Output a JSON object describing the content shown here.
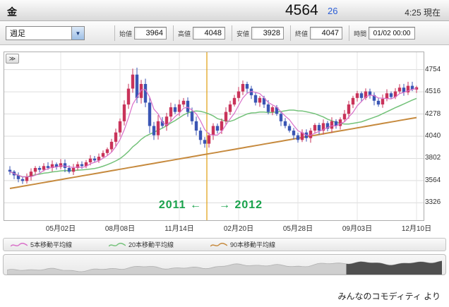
{
  "header": {
    "instrument": "金",
    "price": "4564",
    "change": "26",
    "time_now": "4:25 現在"
  },
  "toolbar": {
    "timeframe": {
      "value": "週足"
    },
    "fields": [
      {
        "label": "始値",
        "value": "3964"
      },
      {
        "label": "高値",
        "value": "4048"
      },
      {
        "label": "安値",
        "value": "3928"
      },
      {
        "label": "終値",
        "value": "4047"
      },
      {
        "label": "時間",
        "value": "01/02 00:00"
      }
    ]
  },
  "icons": {
    "expand_panel": "≫",
    "dropdown_arrow": "▼"
  },
  "chart_data": {
    "type": "candlestick",
    "timeframe": "weekly",
    "y_ticks": [
      3326,
      3564,
      3802,
      4040,
      4278,
      4516,
      4754
    ],
    "y_range": [
      3140,
      4940
    ],
    "x_tick_labels": [
      "05月02日",
      "08月08日",
      "11月14日",
      "02月20日",
      "05月28日",
      "09月03日",
      "12月10日"
    ],
    "x_tick_indices": [
      12,
      26,
      40,
      54,
      68,
      82,
      96
    ],
    "first_open": 3680,
    "closes": [
      3660,
      3620,
      3580,
      3560,
      3610,
      3660,
      3700,
      3680,
      3720,
      3700,
      3740,
      3710,
      3750,
      3700,
      3660,
      3700,
      3740,
      3720,
      3760,
      3800,
      3780,
      3820,
      3860,
      3900,
      3980,
      4080,
      4200,
      4380,
      4550,
      4700,
      4450,
      4600,
      4400,
      4150,
      4050,
      4200,
      4150,
      4250,
      4350,
      4300,
      4380,
      4420,
      4300,
      4200,
      4100,
      4000,
      3960,
      4050,
      4150,
      4100,
      4200,
      4300,
      4380,
      4450,
      4520,
      4600,
      4550,
      4480,
      4400,
      4450,
      4380,
      4300,
      4350,
      4280,
      4200,
      4150,
      4100,
      4050,
      4000,
      4080,
      4020,
      4100,
      4160,
      4100,
      4180,
      4120,
      4200,
      4150,
      4220,
      4280,
      4380,
      4450,
      4500,
      4450,
      4520,
      4480,
      4420,
      4380,
      4440,
      4500,
      4460,
      4520,
      4560,
      4510,
      4580,
      4540,
      4564
    ],
    "year_divider_index": 47,
    "divider_color": "#e2a41f",
    "up_color": "#c9335a",
    "down_color": "#3a55b4",
    "grid_color": "#dcdcdc",
    "annotations": {
      "left": "2011 ←",
      "right": "→ 2012",
      "color": "#18a24b"
    },
    "ma": [
      {
        "label": "5本移動平均線",
        "period": 5,
        "color": "#d96fc9"
      },
      {
        "label": "20本移動平均線",
        "period": 20,
        "color": "#74c27a"
      },
      {
        "label": "90本移動平均線",
        "period": 90,
        "color": "#c68a3e",
        "approx_start": 3480,
        "approx_end": 4240
      }
    ],
    "navigator": {
      "selected_fraction_start": 0.78
    }
  },
  "footer": {
    "credit": "みんなのコモディティ より"
  }
}
